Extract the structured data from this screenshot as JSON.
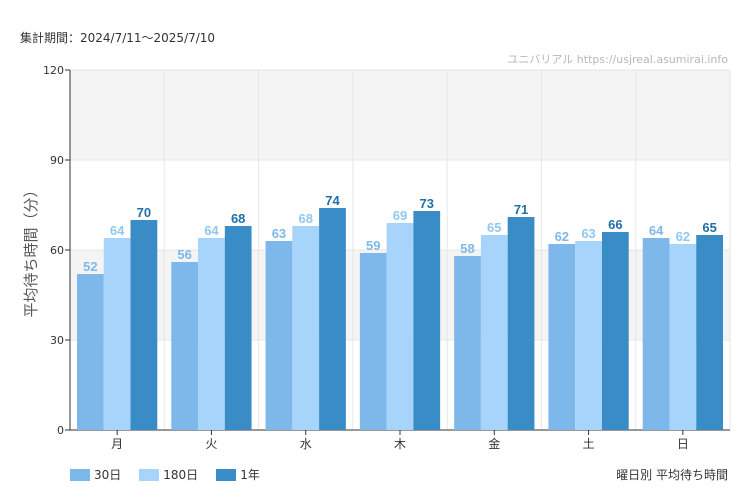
{
  "header": {
    "period": "集計期間：2024/7/11〜2025/7/10",
    "watermark": "ユニバリアル  https://usjreal.asumirai.info"
  },
  "footer": {
    "caption": "曜日別 平均待ち時間"
  },
  "chart_data": {
    "type": "bar",
    "title": "",
    "ylabel": "平均待ち時間（分）",
    "xlabel": "",
    "ylim": [
      0,
      120
    ],
    "yticks": [
      0,
      30,
      60,
      90,
      120
    ],
    "categories": [
      "月",
      "火",
      "水",
      "木",
      "金",
      "土",
      "日"
    ],
    "series": [
      {
        "name": "30日",
        "color": "#7eb8ea",
        "label_color": "#7eb8ea",
        "values": [
          52,
          56,
          63,
          59,
          58,
          62,
          64
        ]
      },
      {
        "name": "180日",
        "color": "#a6d4fa",
        "label_color": "#8fc8f2",
        "values": [
          64,
          64,
          68,
          69,
          65,
          63,
          62
        ]
      },
      {
        "name": "1年",
        "color": "#3a8cc6",
        "label_color": "#1f6fa8",
        "values": [
          70,
          68,
          74,
          73,
          71,
          66,
          65
        ]
      }
    ],
    "legend_position": "bottom-left",
    "grid": true
  }
}
